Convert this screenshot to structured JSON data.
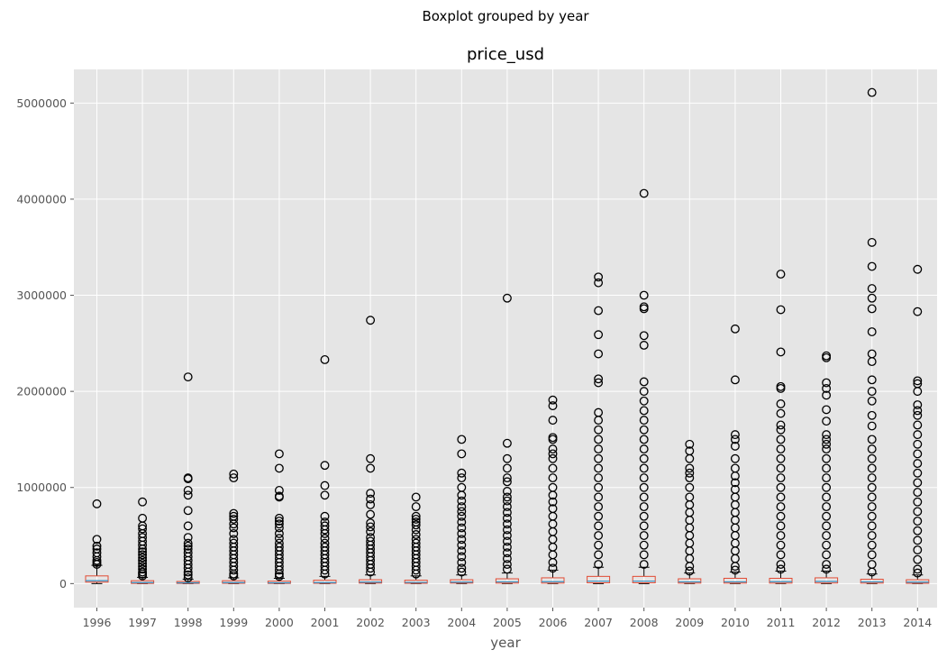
{
  "chart_data": {
    "type": "box",
    "suptitle": "Boxplot grouped by year",
    "title": "price_usd",
    "xlabel": "year",
    "ylabel": "",
    "ylim": [
      -250000,
      5350000
    ],
    "yticks": [
      "0",
      "1000000",
      "2000000",
      "3000000",
      "4000000",
      "5000000"
    ],
    "grid": true,
    "style": "ggplot",
    "colors": {
      "background": "#e5e5e5",
      "grid": "#ffffff",
      "box": "#e24a33",
      "median": "#348abd",
      "whisker": "#000000",
      "flier": "#000000"
    },
    "categories": [
      "1996",
      "1997",
      "1998",
      "1999",
      "2000",
      "2001",
      "2002",
      "2003",
      "2004",
      "2005",
      "2006",
      "2007",
      "2008",
      "2009",
      "2010",
      "2011",
      "2012",
      "2013",
      "2014"
    ],
    "boxes": [
      {
        "q1": 15000,
        "median": 30000,
        "q3": 80000,
        "whisker_low": 0,
        "whisker_high": 190000,
        "outliers": [
          200000,
          220000,
          240000,
          280000,
          320000,
          360000,
          390000,
          460000,
          830000
        ]
      },
      {
        "q1": 2000,
        "median": 10000,
        "q3": 30000,
        "whisker_low": 0,
        "whisker_high": 65000,
        "outliers": [
          680000,
          850000,
          600000,
          570000,
          520000,
          480000,
          440000,
          400000,
          360000,
          330000,
          300000,
          270000,
          240000,
          210000,
          180000,
          150000,
          120000,
          100000,
          80000
        ]
      },
      {
        "q1": 2000,
        "median": 8000,
        "q3": 22000,
        "whisker_low": 0,
        "whisker_high": 45000,
        "outliers": [
          2150000,
          1100000,
          1090000,
          970000,
          920000,
          760000,
          600000,
          480000,
          420000,
          390000,
          360000,
          320000,
          280000,
          240000,
          200000,
          160000,
          120000,
          90000,
          60000
        ]
      },
      {
        "q1": 3000,
        "median": 10000,
        "q3": 30000,
        "whisker_low": 0,
        "whisker_high": 60000,
        "outliers": [
          1140000,
          1100000,
          730000,
          700000,
          670000,
          620000,
          580000,
          520000,
          460000,
          420000,
          380000,
          340000,
          300000,
          260000,
          220000,
          180000,
          140000,
          100000,
          80000
        ]
      },
      {
        "q1": 2000,
        "median": 8000,
        "q3": 25000,
        "whisker_low": 0,
        "whisker_high": 55000,
        "outliers": [
          1350000,
          1200000,
          970000,
          910000,
          900000,
          680000,
          650000,
          620000,
          580000,
          520000,
          470000,
          420000,
          380000,
          340000,
          300000,
          260000,
          220000,
          180000,
          140000,
          100000,
          75000
        ]
      },
      {
        "q1": 3000,
        "median": 10000,
        "q3": 35000,
        "whisker_low": 0,
        "whisker_high": 75000,
        "outliers": [
          2330000,
          1230000,
          1020000,
          920000,
          700000,
          640000,
          600000,
          560000,
          520000,
          470000,
          420000,
          380000,
          340000,
          300000,
          260000,
          220000,
          180000,
          140000,
          100000
        ]
      },
      {
        "q1": 5000,
        "median": 15000,
        "q3": 40000,
        "whisker_low": 0,
        "whisker_high": 90000,
        "outliers": [
          2740000,
          1300000,
          1200000,
          940000,
          880000,
          820000,
          720000,
          630000,
          590000,
          540000,
          480000,
          440000,
          400000,
          360000,
          320000,
          280000,
          240000,
          200000,
          160000,
          120000
        ]
      },
      {
        "q1": 3000,
        "median": 12000,
        "q3": 35000,
        "whisker_low": 0,
        "whisker_high": 80000,
        "outliers": [
          900000,
          800000,
          700000,
          670000,
          640000,
          610000,
          560000,
          510000,
          460000,
          420000,
          380000,
          340000,
          300000,
          260000,
          220000,
          180000,
          140000,
          100000
        ]
      },
      {
        "q1": 5000,
        "median": 15000,
        "q3": 40000,
        "whisker_low": 0,
        "whisker_high": 90000,
        "outliers": [
          1500000,
          1350000,
          1150000,
          1100000,
          1000000,
          920000,
          860000,
          800000,
          750000,
          700000,
          640000,
          580000,
          520000,
          460000,
          400000,
          340000,
          280000,
          220000,
          160000,
          120000
        ]
      },
      {
        "q1": 5000,
        "median": 18000,
        "q3": 50000,
        "whisker_low": 0,
        "whisker_high": 110000,
        "outliers": [
          2970000,
          1460000,
          1300000,
          1200000,
          1100000,
          1060000,
          960000,
          900000,
          860000,
          800000,
          740000,
          680000,
          620000,
          560000,
          500000,
          440000,
          380000,
          320000,
          260000,
          200000,
          150000
        ]
      },
      {
        "q1": 5000,
        "median": 20000,
        "q3": 60000,
        "whisker_low": 0,
        "whisker_high": 140000,
        "outliers": [
          1910000,
          1850000,
          1700000,
          1520000,
          1500000,
          1400000,
          1350000,
          1300000,
          1200000,
          1100000,
          1000000,
          920000,
          850000,
          780000,
          700000,
          620000,
          540000,
          460000,
          380000,
          300000,
          220000,
          160000
        ]
      },
      {
        "q1": 8000,
        "median": 25000,
        "q3": 75000,
        "whisker_low": 0,
        "whisker_high": 170000,
        "outliers": [
          3190000,
          3130000,
          2840000,
          2590000,
          2390000,
          2130000,
          2090000,
          1780000,
          1700000,
          1600000,
          1500000,
          1400000,
          1300000,
          1200000,
          1100000,
          1000000,
          900000,
          800000,
          700000,
          600000,
          500000,
          400000,
          300000,
          200000
        ]
      },
      {
        "q1": 8000,
        "median": 25000,
        "q3": 75000,
        "whisker_low": 0,
        "whisker_high": 170000,
        "outliers": [
          4060000,
          3000000,
          2880000,
          2860000,
          2580000,
          2480000,
          2100000,
          2000000,
          1900000,
          1800000,
          1700000,
          1600000,
          1500000,
          1400000,
          1300000,
          1200000,
          1100000,
          1000000,
          900000,
          800000,
          700000,
          600000,
          500000,
          400000,
          300000,
          200000
        ]
      },
      {
        "q1": 5000,
        "median": 18000,
        "q3": 50000,
        "whisker_low": 0,
        "whisker_high": 110000,
        "outliers": [
          1450000,
          1380000,
          1300000,
          1200000,
          1150000,
          1100000,
          1000000,
          900000,
          820000,
          740000,
          660000,
          580000,
          500000,
          420000,
          340000,
          260000,
          180000,
          130000
        ]
      },
      {
        "q1": 5000,
        "median": 18000,
        "q3": 55000,
        "whisker_low": 0,
        "whisker_high": 120000,
        "outliers": [
          2650000,
          2120000,
          1550000,
          1500000,
          1430000,
          1300000,
          1200000,
          1120000,
          1050000,
          980000,
          900000,
          820000,
          740000,
          660000,
          580000,
          500000,
          420000,
          340000,
          260000,
          180000,
          140000
        ]
      },
      {
        "q1": 5000,
        "median": 20000,
        "q3": 55000,
        "whisker_low": 0,
        "whisker_high": 130000,
        "outliers": [
          3220000,
          2850000,
          2410000,
          2050000,
          2030000,
          1870000,
          1770000,
          1650000,
          1600000,
          1500000,
          1400000,
          1300000,
          1200000,
          1100000,
          1000000,
          900000,
          800000,
          700000,
          600000,
          500000,
          400000,
          300000,
          200000,
          150000
        ]
      },
      {
        "q1": 6000,
        "median": 22000,
        "q3": 60000,
        "whisker_low": 0,
        "whisker_high": 130000,
        "outliers": [
          2370000,
          2350000,
          2090000,
          2030000,
          1960000,
          1810000,
          1690000,
          1550000,
          1500000,
          1450000,
          1400000,
          1300000,
          1200000,
          1100000,
          1000000,
          900000,
          800000,
          700000,
          600000,
          500000,
          400000,
          300000,
          200000,
          150000
        ]
      },
      {
        "q1": 5000,
        "median": 18000,
        "q3": 45000,
        "whisker_low": 0,
        "whisker_high": 100000,
        "outliers": [
          5110000,
          3550000,
          3300000,
          3070000,
          2970000,
          2860000,
          2620000,
          2390000,
          2310000,
          2120000,
          2000000,
          1900000,
          1750000,
          1640000,
          1500000,
          1400000,
          1300000,
          1200000,
          1100000,
          1000000,
          900000,
          800000,
          700000,
          600000,
          500000,
          400000,
          300000,
          200000,
          120000
        ]
      },
      {
        "q1": 3000,
        "median": 15000,
        "q3": 40000,
        "whisker_low": 0,
        "whisker_high": 90000,
        "outliers": [
          3270000,
          2830000,
          2110000,
          2080000,
          2000000,
          1860000,
          1800000,
          1750000,
          1650000,
          1550000,
          1450000,
          1350000,
          1250000,
          1150000,
          1050000,
          950000,
          850000,
          750000,
          650000,
          550000,
          450000,
          350000,
          250000,
          150000,
          110000
        ]
      }
    ]
  }
}
